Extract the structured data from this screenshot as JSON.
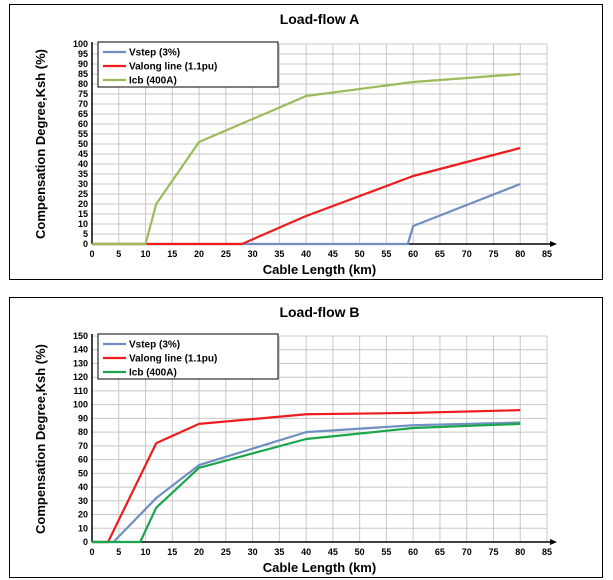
{
  "colors": {
    "vstep": "#6f8fc0",
    "valong": "#ee1c1c",
    "icb_a": "#9bbb59",
    "icb_b": "#1aa64a"
  },
  "chart_data": [
    {
      "type": "line",
      "title": "Load-flow A",
      "xlabel": "Cable Length (km)",
      "ylabel": "Compensation Degree,Ksh (%)",
      "xlim": [
        0,
        85
      ],
      "ylim": [
        0,
        100
      ],
      "xticks": [
        "0",
        "5",
        "10",
        "15",
        "20",
        "25",
        "30",
        "35",
        "40",
        "45",
        "50",
        "55",
        "60",
        "65",
        "70",
        "75",
        "80",
        "85"
      ],
      "yticks": [
        "0",
        "5",
        "10",
        "15",
        "20",
        "25",
        "30",
        "35",
        "40",
        "45",
        "50",
        "55",
        "60",
        "65",
        "70",
        "75",
        "80",
        "85",
        "90",
        "95",
        "100"
      ],
      "grid": true,
      "legend_position": "top-left",
      "series": [
        {
          "name": "Vstep (3%)",
          "color_key": "vstep",
          "x": [
            0,
            59,
            60,
            80
          ],
          "y": [
            0,
            0,
            9,
            30
          ]
        },
        {
          "name": "Valong line (1.1pu)",
          "color_key": "valong",
          "x": [
            0,
            28,
            40,
            60,
            80
          ],
          "y": [
            0,
            0,
            14,
            34,
            48
          ]
        },
        {
          "name": "Icb (400A)",
          "color_key": "icb_a",
          "x": [
            0,
            10,
            12,
            20,
            40,
            60,
            80
          ],
          "y": [
            0,
            0,
            20,
            51,
            74,
            81,
            85
          ]
        }
      ]
    },
    {
      "type": "line",
      "title": "Load-flow B",
      "xlabel": "Cable Length (km)",
      "ylabel": "Compensation Degree,Ksh (%)",
      "xlim": [
        0,
        85
      ],
      "ylim": [
        0,
        150
      ],
      "xticks": [
        "0",
        "5",
        "10",
        "15",
        "20",
        "25",
        "30",
        "35",
        "40",
        "45",
        "50",
        "55",
        "60",
        "65",
        "70",
        "75",
        "80",
        "85"
      ],
      "yticks": [
        "0",
        "10",
        "20",
        "30",
        "40",
        "50",
        "60",
        "70",
        "80",
        "90",
        "100",
        "110",
        "120",
        "130",
        "140",
        "150"
      ],
      "grid": true,
      "legend_position": "top-left",
      "series": [
        {
          "name": "Vstep (3%)",
          "color_key": "vstep",
          "x": [
            0,
            4,
            12,
            20,
            40,
            60,
            80
          ],
          "y": [
            0,
            0,
            32,
            56,
            80,
            85,
            87
          ]
        },
        {
          "name": "Valong line (1.1pu)",
          "color_key": "valong",
          "x": [
            0,
            3,
            12,
            20,
            40,
            60,
            80
          ],
          "y": [
            0,
            0,
            72,
            86,
            93,
            94,
            96
          ]
        },
        {
          "name": "Icb (400A)",
          "color_key": "icb_b",
          "x": [
            0,
            9,
            12,
            20,
            40,
            60,
            80
          ],
          "y": [
            0,
            0,
            25,
            54,
            75,
            83,
            86
          ]
        }
      ]
    }
  ]
}
